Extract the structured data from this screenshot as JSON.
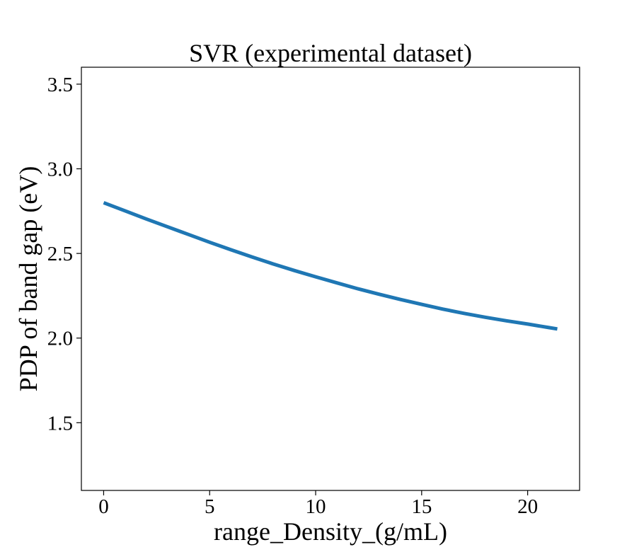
{
  "chart_data": {
    "type": "line",
    "title": "SVR (experimental dataset)",
    "xlabel": "range_Density_(g/mL)",
    "ylabel": "PDP of band gap (eV)",
    "xlim": [
      -1.05,
      22.45
    ],
    "ylim": [
      1.1,
      3.6
    ],
    "xticks": [
      0,
      5,
      10,
      15,
      20
    ],
    "xtick_labels": [
      "0",
      "5",
      "10",
      "15",
      "20"
    ],
    "yticks": [
      1.5,
      2.0,
      2.5,
      3.0,
      3.5
    ],
    "ytick_labels": [
      "1.5",
      "2.0",
      "2.5",
      "3.0",
      "3.5"
    ],
    "grid": false,
    "series": [
      {
        "color": "#1f77b4",
        "x": [
          0,
          1,
          2,
          3,
          4,
          5,
          6,
          7,
          8,
          9,
          10,
          11,
          12,
          13,
          14,
          15,
          16,
          17,
          18,
          19,
          20,
          21,
          21.4
        ],
        "y": [
          2.8,
          2.752,
          2.704,
          2.658,
          2.612,
          2.566,
          2.522,
          2.479,
          2.438,
          2.399,
          2.362,
          2.326,
          2.291,
          2.259,
          2.228,
          2.199,
          2.171,
          2.146,
          2.123,
          2.102,
          2.083,
          2.062,
          2.054
        ]
      }
    ]
  }
}
